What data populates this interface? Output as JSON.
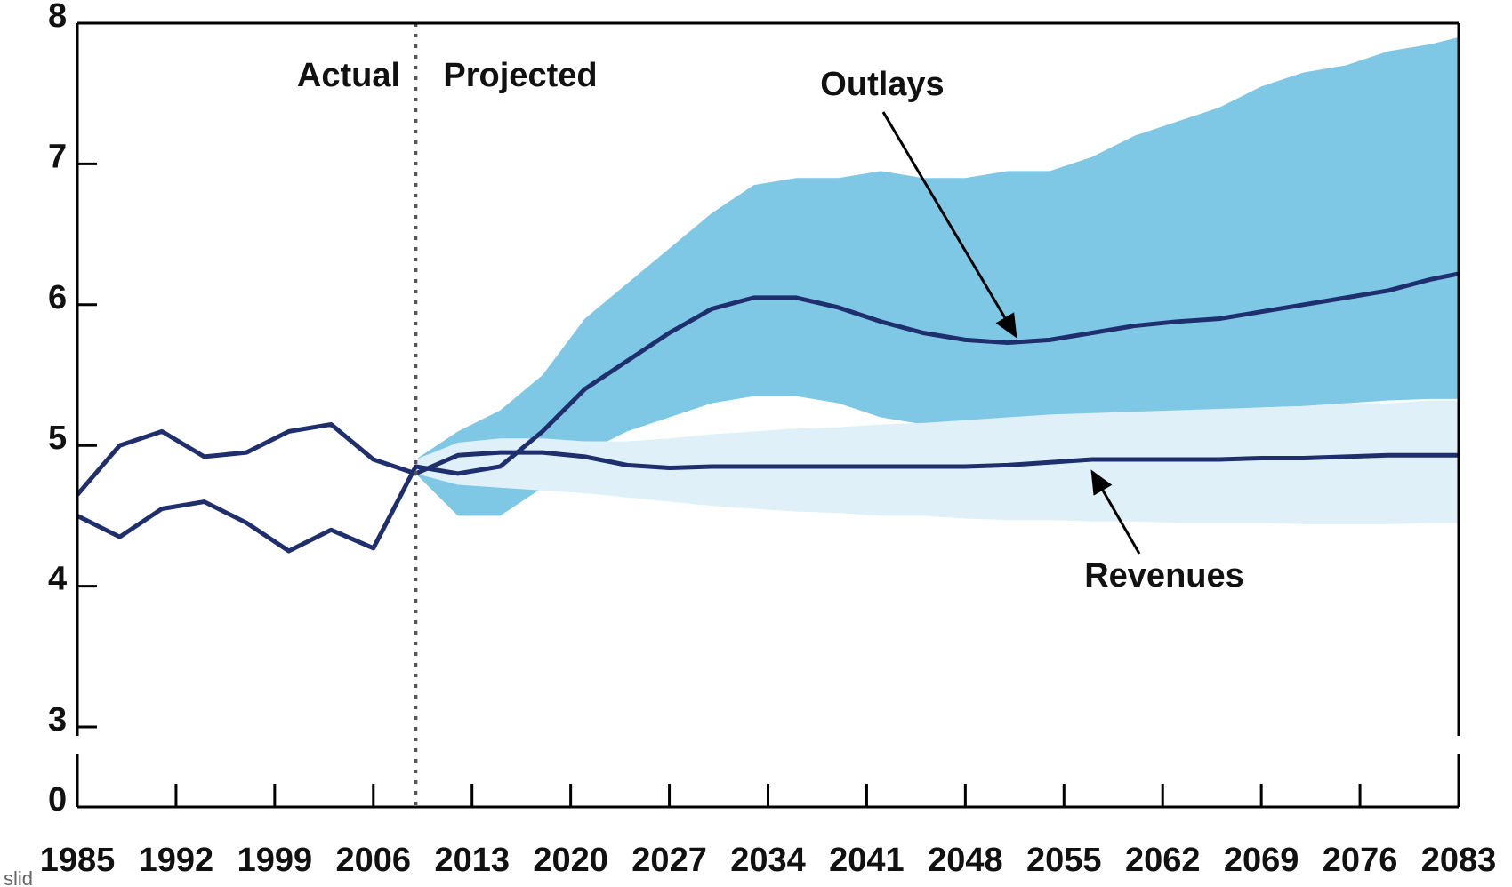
{
  "chart_data": {
    "type": "line",
    "x": [
      1985,
      1988,
      1991,
      1994,
      1997,
      2000,
      2003,
      2006,
      2009,
      2012,
      2015,
      2018,
      2021,
      2024,
      2027,
      2030,
      2033,
      2036,
      2039,
      2042,
      2045,
      2048,
      2051,
      2054,
      2057,
      2060,
      2063,
      2066,
      2069,
      2072,
      2075,
      2078,
      2081,
      2083
    ],
    "series": [
      {
        "name": "Outlays",
        "color": "#1f2f6e",
        "values": [
          4.5,
          4.35,
          4.55,
          4.6,
          4.45,
          4.25,
          4.4,
          4.27,
          4.85,
          4.8,
          4.85,
          5.1,
          5.4,
          5.6,
          5.8,
          5.97,
          6.05,
          6.05,
          5.98,
          5.88,
          5.8,
          5.75,
          5.73,
          5.75,
          5.8,
          5.85,
          5.88,
          5.9,
          5.95,
          6.0,
          6.05,
          6.1,
          6.18,
          6.22
        ]
      },
      {
        "name": "Revenues",
        "color": "#1f2f6e",
        "values": [
          4.65,
          5.0,
          5.1,
          4.92,
          4.95,
          5.1,
          5.15,
          4.9,
          4.8,
          4.93,
          4.95,
          4.95,
          4.92,
          4.86,
          4.84,
          4.85,
          4.85,
          4.85,
          4.85,
          4.85,
          4.85,
          4.85,
          4.86,
          4.88,
          4.9,
          4.9,
          4.9,
          4.9,
          4.91,
          4.91,
          4.92,
          4.93,
          4.93,
          4.93
        ]
      }
    ],
    "bands": [
      {
        "color": "#7ec8e6",
        "low": [
          null,
          null,
          null,
          null,
          null,
          null,
          null,
          null,
          4.8,
          4.5,
          4.5,
          4.7,
          4.95,
          5.1,
          5.2,
          5.3,
          5.35,
          5.35,
          5.3,
          5.2,
          5.15,
          5.12,
          5.12,
          5.15,
          5.18,
          5.2,
          5.22,
          5.25,
          5.27,
          5.28,
          5.3,
          5.32,
          5.33,
          5.33
        ],
        "high": [
          null,
          null,
          null,
          null,
          null,
          null,
          null,
          null,
          4.9,
          5.1,
          5.25,
          5.5,
          5.9,
          6.15,
          6.4,
          6.65,
          6.85,
          6.9,
          6.9,
          6.95,
          6.9,
          6.9,
          6.95,
          6.95,
          7.05,
          7.2,
          7.3,
          7.4,
          7.55,
          7.65,
          7.7,
          7.8,
          7.85,
          7.9
        ]
      },
      {
        "color": "#dff0f9",
        "low": [
          null,
          null,
          null,
          null,
          null,
          null,
          null,
          null,
          4.8,
          4.72,
          4.7,
          4.68,
          4.66,
          4.63,
          4.6,
          4.57,
          4.55,
          4.53,
          4.52,
          4.5,
          4.5,
          4.48,
          4.47,
          4.47,
          4.46,
          4.46,
          4.45,
          4.45,
          4.45,
          4.44,
          4.44,
          4.44,
          4.45,
          4.45
        ],
        "high": [
          null,
          null,
          null,
          null,
          null,
          null,
          null,
          null,
          4.9,
          5.02,
          5.05,
          5.05,
          5.03,
          5.03,
          5.05,
          5.08,
          5.1,
          5.12,
          5.13,
          5.15,
          5.16,
          5.18,
          5.2,
          5.22,
          5.23,
          5.24,
          5.25,
          5.26,
          5.27,
          5.28,
          5.3,
          5.3,
          5.32,
          5.32
        ]
      }
    ],
    "annotations": [
      "Actual",
      "Projected"
    ],
    "xlim": [
      1985,
      2083
    ],
    "xticks": [
      1985,
      1992,
      1999,
      2006,
      2013,
      2020,
      2027,
      2034,
      2041,
      2048,
      2055,
      2062,
      2069,
      2076,
      2083
    ],
    "ylim": [
      0,
      8
    ],
    "axis_break": [
      0,
      3
    ],
    "yticks": [
      0,
      3,
      4,
      5,
      6,
      7,
      8
    ],
    "slide_label": "slid"
  }
}
